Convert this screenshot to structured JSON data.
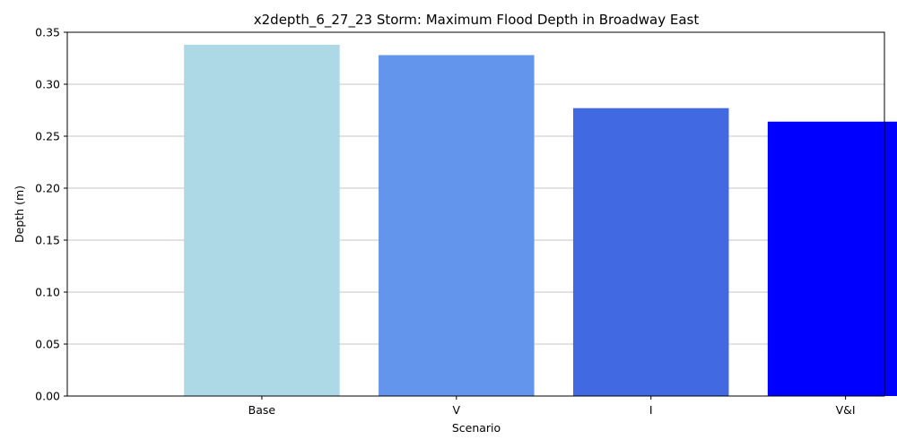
{
  "chart_data": {
    "type": "bar",
    "title": "x2depth_6_27_23 Storm: Maximum Flood Depth in Broadway East",
    "xlabel": "Scenario",
    "ylabel": "Depth (m)",
    "categories": [
      "Base",
      "V",
      "I",
      "V&I"
    ],
    "values": [
      0.338,
      0.328,
      0.277,
      0.264
    ],
    "colors": [
      "#add8e6",
      "#6495ed",
      "#4169e1",
      "#0000ff"
    ],
    "ylim": [
      0,
      0.35
    ],
    "yticks": [
      0.0,
      0.05,
      0.1,
      0.15,
      0.2,
      0.25,
      0.3,
      0.35
    ],
    "grid": "y"
  }
}
